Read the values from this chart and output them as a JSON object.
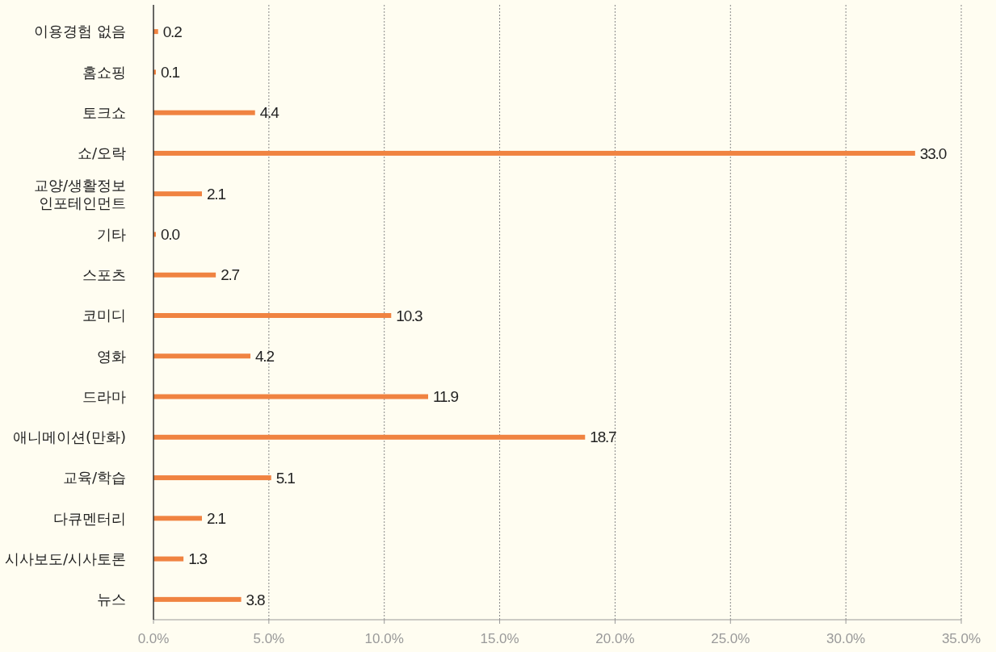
{
  "chart_data": {
    "type": "bar",
    "orientation": "horizontal",
    "categories": [
      "이용경험 없음",
      "홈쇼핑",
      "토크쇼",
      "쇼/오락",
      "교양/생활정보\n인포테인먼트",
      "기타",
      "스포츠",
      "코미디",
      "영화",
      "드라마",
      "애니메이션(만화)",
      "교육/학습",
      "다큐멘터리",
      "시사보도/시사토론",
      "뉴스"
    ],
    "values": [
      0.2,
      0.1,
      4.4,
      33.0,
      2.1,
      0.0,
      2.7,
      10.3,
      4.2,
      11.9,
      18.7,
      5.1,
      2.1,
      1.3,
      3.8
    ],
    "color": "#f08341",
    "xlim": [
      0,
      35
    ],
    "xticks": [
      {
        "value": 0,
        "label": "0.0%"
      },
      {
        "value": 5,
        "label": "5.0%"
      },
      {
        "value": 10,
        "label": "10.0%"
      },
      {
        "value": 15,
        "label": "15.0%"
      },
      {
        "value": 20,
        "label": "20.0%"
      },
      {
        "value": 25,
        "label": "25.0%"
      },
      {
        "value": 30,
        "label": "30.0%"
      },
      {
        "value": 35,
        "label": "35.0%"
      }
    ],
    "value_labels": [
      "0.2",
      "0.1",
      "4.4",
      "33.0",
      "2.1",
      "0.0",
      "2.7",
      "10.3",
      "4.2",
      "11.9",
      "18.7",
      "5.1",
      "2.1",
      "1.3",
      "3.8"
    ],
    "grid": "x"
  }
}
